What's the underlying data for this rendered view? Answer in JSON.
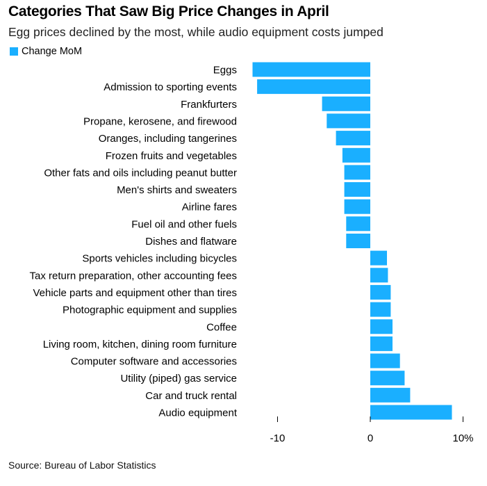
{
  "chart_data": {
    "type": "bar",
    "orientation": "horizontal",
    "title": "Categories That Saw Big Price Changes in April",
    "subtitle": "Egg prices declined by the most, while audio equipment costs jumped",
    "legend": "Change MoM",
    "legend_position": "top-left",
    "categories": [
      "Eggs",
      "Admission to sporting events",
      "Frankfurters",
      "Propane, kerosene, and firewood",
      "Oranges, including tangerines",
      "Frozen fruits and vegetables",
      "Other fats and oils including peanut butter",
      "Men's shirts and sweaters",
      "Airline fares",
      "Fuel oil and other fuels",
      "Dishes and flatware",
      "Sports vehicles including bicycles",
      "Tax return preparation, other accounting fees",
      "Vehicle parts and equipment other than tires",
      "Photographic equipment and supplies",
      "Coffee",
      "Living room, kitchen, dining room furniture",
      "Computer software and accessories",
      "Utility (piped) gas service",
      "Car and truck rental",
      "Audio equipment"
    ],
    "series": [
      {
        "name": "Change MoM",
        "values": [
          -12.7,
          -12.2,
          -5.2,
          -4.7,
          -3.7,
          -3.0,
          -2.8,
          -2.8,
          -2.8,
          -2.6,
          -2.6,
          1.8,
          1.9,
          2.2,
          2.2,
          2.4,
          2.4,
          3.2,
          3.7,
          4.3,
          8.8
        ]
      }
    ],
    "xlim": [
      -13.5,
      10
    ],
    "xticks": [
      -10,
      0,
      10
    ],
    "xtick_labels": [
      "-10",
      "0",
      "10%"
    ],
    "xlabel": "",
    "ylabel": "",
    "grid": false,
    "source": "Source: Bureau of Labor Statistics"
  },
  "colors": {
    "bar": "#1aafff",
    "text": "#000000",
    "axis": "#000000"
  }
}
